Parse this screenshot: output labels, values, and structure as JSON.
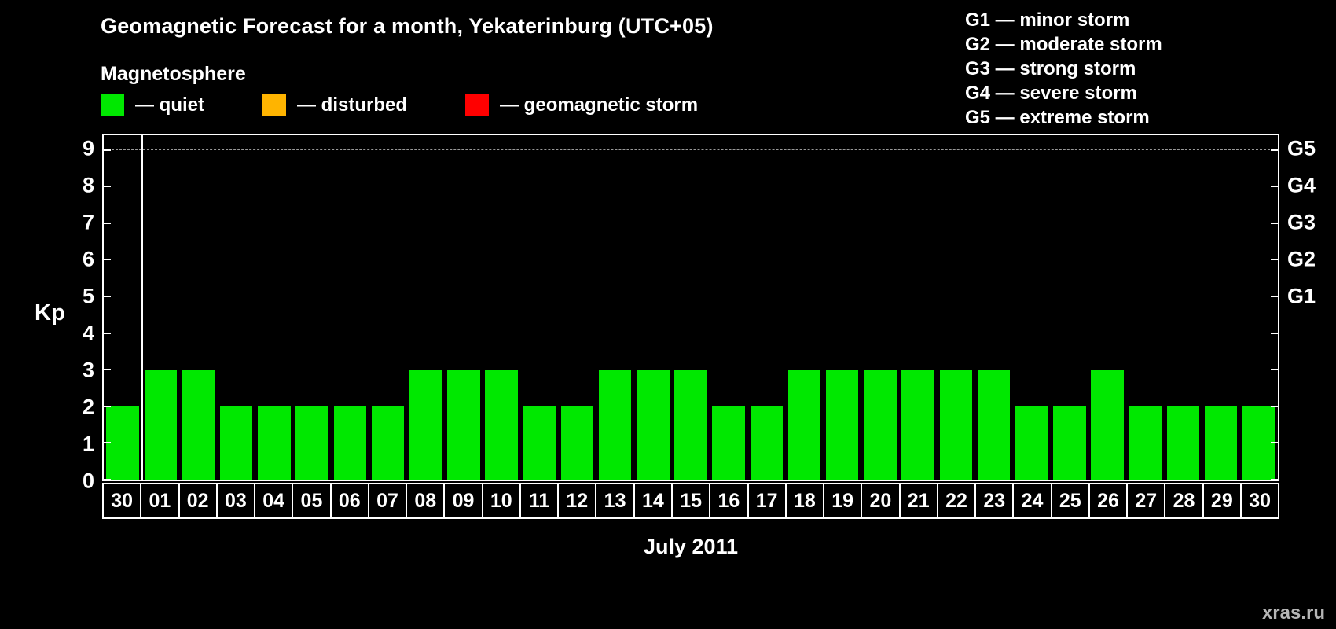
{
  "title": "Geomagnetic Forecast for a month, Yekaterinburg (UTC+05)",
  "legend": {
    "heading": "Magnetosphere",
    "items": [
      {
        "name": "quiet",
        "label": "— quiet",
        "color": "#00e800"
      },
      {
        "name": "disturbed",
        "label": "— disturbed",
        "color": "#ffb400"
      },
      {
        "name": "geomagnetic-storm",
        "label": "— geomagnetic storm",
        "color": "#ff0000"
      }
    ]
  },
  "g_legend": [
    "G1 — minor storm",
    "G2 — moderate storm",
    "G3 — strong storm",
    "G4 — severe storm",
    "G5 — extreme storm"
  ],
  "watermark": "xras.ru",
  "chart_data": {
    "type": "bar",
    "title": "Geomagnetic Forecast for a month, Yekaterinburg (UTC+05)",
    "xlabel": "July 2011",
    "ylabel": "Kp",
    "ylim": [
      0,
      9.4
    ],
    "yticks": [
      0,
      1,
      2,
      3,
      4,
      5,
      6,
      7,
      8,
      9
    ],
    "categories": [
      "30",
      "01",
      "02",
      "03",
      "04",
      "05",
      "06",
      "07",
      "08",
      "09",
      "10",
      "11",
      "12",
      "13",
      "14",
      "15",
      "16",
      "17",
      "18",
      "19",
      "20",
      "21",
      "22",
      "23",
      "24",
      "25",
      "26",
      "27",
      "28",
      "29",
      "30"
    ],
    "values": [
      2,
      3,
      3,
      2,
      2,
      2,
      2,
      2,
      3,
      3,
      3,
      2,
      2,
      3,
      3,
      3,
      2,
      2,
      3,
      3,
      3,
      3,
      3,
      3,
      2,
      2,
      3,
      2,
      2,
      2,
      2
    ],
    "bar_color": "#00e800",
    "gridlines_kp": [
      5,
      6,
      7,
      8,
      9
    ],
    "right_axis_labels": [
      {
        "label": "G1",
        "kp": 5
      },
      {
        "label": "G2",
        "kp": 6
      },
      {
        "label": "G3",
        "kp": 7
      },
      {
        "label": "G4",
        "kp": 8
      },
      {
        "label": "G5",
        "kp": 9
      }
    ],
    "separator_after_index": 0,
    "grid": "dashed-horizontal",
    "legend_position": "top"
  }
}
